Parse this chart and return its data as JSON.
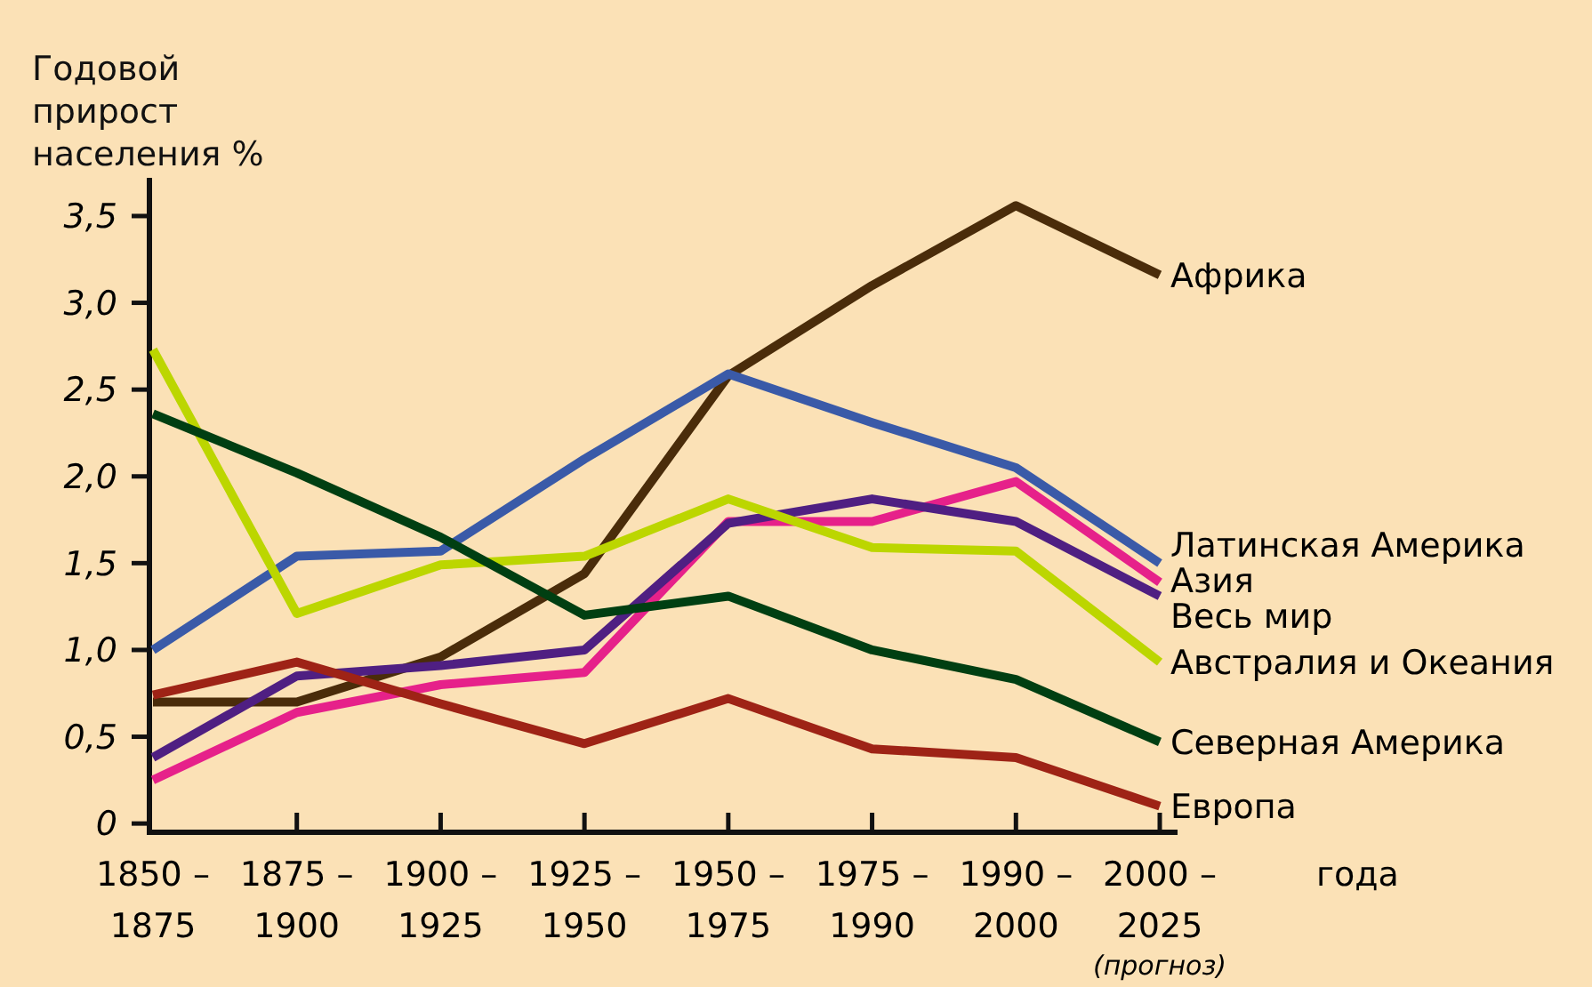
{
  "chart_data": {
    "type": "line",
    "ylabel": "Годовой прирост населения %",
    "xlabel": "года",
    "categories": [
      "1850 – 1875",
      "1875 – 1900",
      "1900 – 1925",
      "1925 – 1950",
      "1950 – 1975",
      "1975 – 1990",
      "1990 – 2000",
      "2000 – 2025 (прогноз)"
    ],
    "ylim": [
      -0.03,
      3.72
    ],
    "yticks": [
      0,
      {
        "value": 0.5,
        "label": "0,5"
      },
      {
        "value": 1,
        "label": "1,0"
      },
      {
        "value": 1.5,
        "label": "1,5"
      },
      {
        "value": 2,
        "label": "2,0"
      },
      {
        "value": 2.5,
        "label": "2,5"
      },
      {
        "value": 3,
        "label": "3,0"
      },
      {
        "value": 3.5,
        "label": "3,5"
      }
    ],
    "series": [
      {
        "name": "Африка",
        "color": "#4a2c0a",
        "values": [
          0.7,
          0.7,
          0.96,
          1.44,
          2.58,
          3.1,
          3.56,
          3.16
        ]
      },
      {
        "name": "Латинская Америка",
        "color": "#3a5aa8",
        "values": [
          1.0,
          1.54,
          1.57,
          2.1,
          2.59,
          2.31,
          2.05,
          1.5
        ]
      },
      {
        "name": "Азия",
        "color": "#e6218a",
        "values": [
          0.25,
          0.64,
          0.8,
          0.87,
          1.74,
          1.74,
          1.97,
          1.39
        ]
      },
      {
        "name": "Весь мир",
        "color": "#4f1f82",
        "values": [
          0.38,
          0.85,
          0.91,
          1.0,
          1.73,
          1.87,
          1.74,
          1.31
        ]
      },
      {
        "name": "Австралия и Океания",
        "color": "#bcd600",
        "values": [
          2.73,
          1.21,
          1.49,
          1.54,
          1.87,
          1.59,
          1.57,
          0.93
        ]
      },
      {
        "name": "Северная Америка",
        "color": "#003f12",
        "values": [
          2.36,
          2.02,
          1.65,
          1.2,
          1.31,
          1.0,
          0.83,
          0.47
        ]
      },
      {
        "name": "Европа",
        "color": "#9e2316",
        "values": [
          0.74,
          0.93,
          0.69,
          0.46,
          0.72,
          0.43,
          0.38,
          0.1
        ]
      }
    ]
  }
}
